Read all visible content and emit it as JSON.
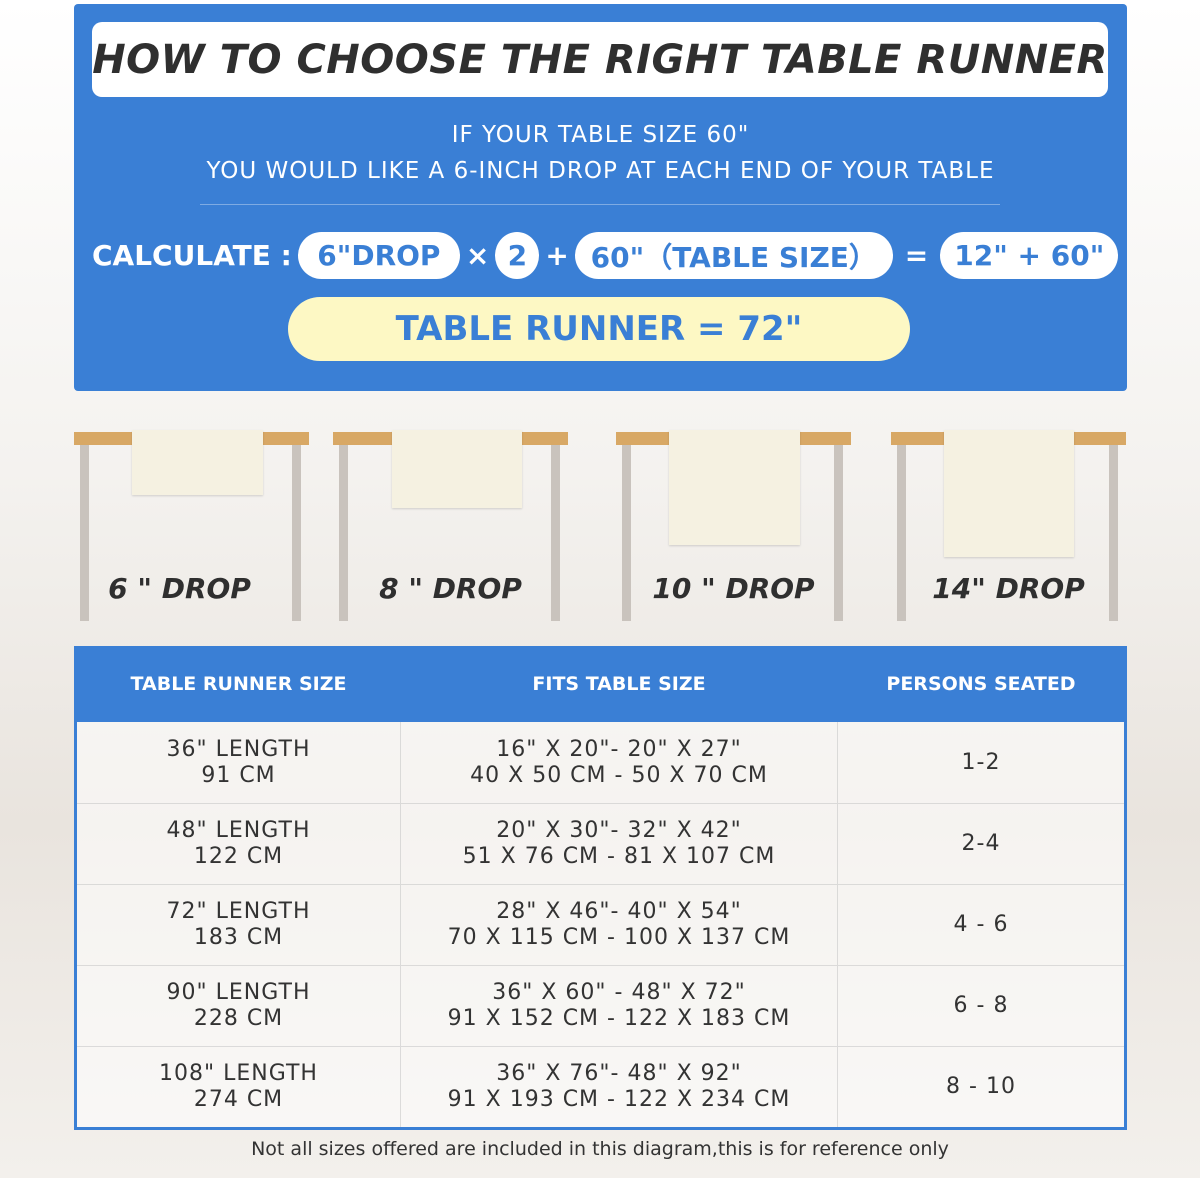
{
  "title": "HOW TO CHOOSE THE RIGHT TABLE RUNNER",
  "intro": [
    "IF YOUR TABLE SIZE 60\"",
    "YOU WOULD LIKE A 6-INCH DROP AT EACH END OF YOUR TABLE"
  ],
  "calc": {
    "label": "CALCULATE :",
    "drop": "6\"DROP",
    "times": "×",
    "multiplier": "2",
    "plus": "+",
    "table": "60\"（TABLE SIZE）",
    "equals": "=",
    "sum": "12\" + 60\"",
    "result": "TABLE RUNNER = 72\""
  },
  "drops": [
    "6 \" DROP",
    "8 \" DROP",
    "10 \" DROP",
    "14\" DROP"
  ],
  "size_table": {
    "headers": [
      "TABLE RUNNER SIZE",
      "FITS TABLE SIZE",
      "PERSONS SEATED"
    ],
    "rows": [
      {
        "runner": [
          "36\" LENGTH",
          "91 CM"
        ],
        "fits": [
          "16\" X 20\"- 20\" X 27\"",
          "40 X 50 CM - 50 X 70 CM"
        ],
        "persons": "1-2"
      },
      {
        "runner": [
          "48\" LENGTH",
          "122 CM"
        ],
        "fits": [
          "20\" X 30\"- 32\" X 42\"",
          "51 X 76 CM - 81 X 107 CM"
        ],
        "persons": "2-4"
      },
      {
        "runner": [
          "72\" LENGTH",
          "183 CM"
        ],
        "fits": [
          "28\" X 46\"- 40\" X 54\"",
          "70 X 115 CM - 100 X 137 CM"
        ],
        "persons": "4 - 6"
      },
      {
        "runner": [
          "90\" LENGTH",
          "228 CM"
        ],
        "fits": [
          "36\" X 60\" - 48\" X 72\"",
          "91 X 152 CM - 122 X 183 CM"
        ],
        "persons": "6 - 8"
      },
      {
        "runner": [
          "108\" LENGTH",
          "274 CM"
        ],
        "fits": [
          "36\" X 76\"- 48\" X 92\"",
          "91 X 193 CM - 122 X 234 CM"
        ],
        "persons": "8 - 10"
      }
    ]
  },
  "footnote": "Not all sizes offered are included in this diagram,this is for reference only",
  "colors": {
    "blue": "#3a7fd5",
    "result_bg": "#fdf8c4",
    "table_top": "#d8a865",
    "runner": "#f5f1e1"
  }
}
